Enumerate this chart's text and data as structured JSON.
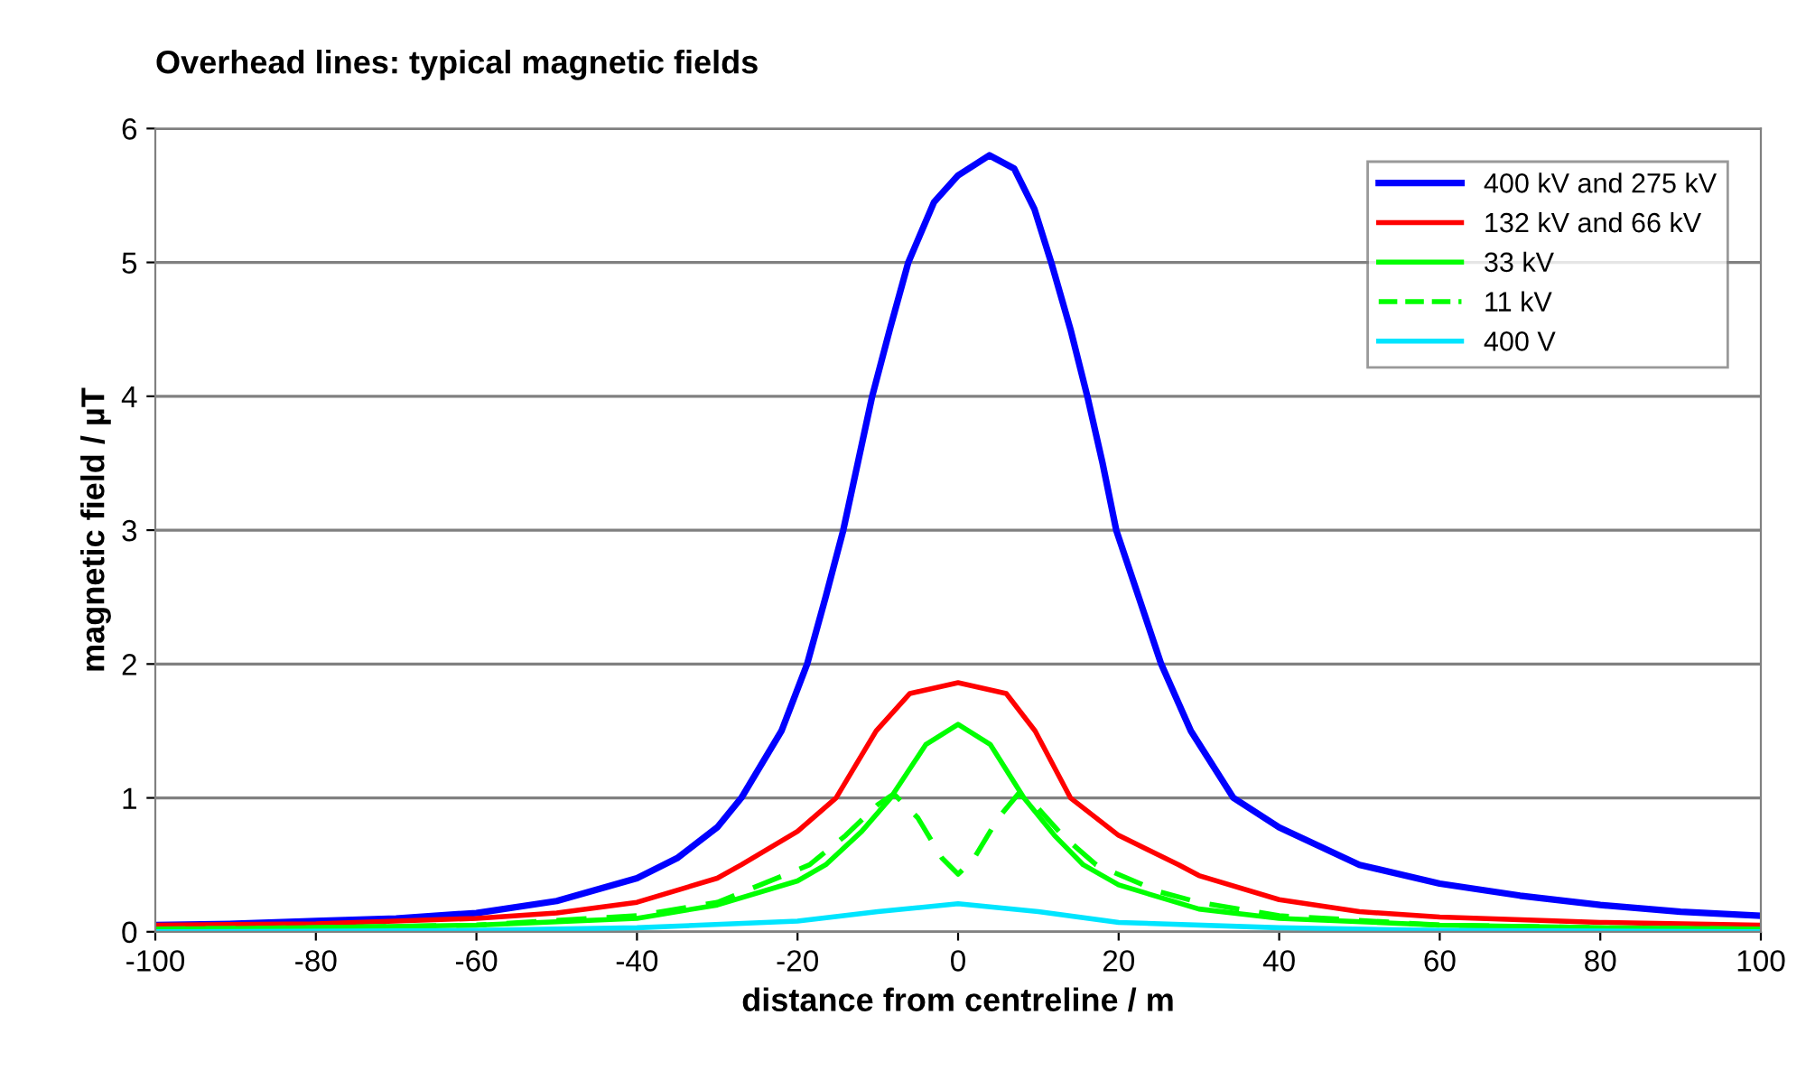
{
  "chart_data": {
    "type": "line",
    "title": "Overhead lines: typical magnetic fields",
    "xlabel": "distance from centreline / m",
    "ylabel": "magnetic field / µT",
    "xlim": [
      -100,
      100
    ],
    "xticks": [
      -100,
      -80,
      -60,
      -40,
      -20,
      0,
      20,
      40,
      60,
      80,
      100
    ],
    "ylim": [
      0,
      6
    ],
    "yticks": [
      0,
      1,
      2,
      3,
      4,
      5,
      6
    ],
    "grid": "y",
    "legend": "top right",
    "marker": "none",
    "series": [
      {
        "name": "400 kV and 275 kV",
        "color": "#0000ff",
        "line_style": "solid",
        "x": [
          -100,
          -90,
          -80,
          -70,
          -60,
          -50,
          -40,
          -35,
          -30,
          -27,
          -22,
          -18.8,
          -16.5,
          -14.3,
          -12.5,
          -10.7,
          -8.5,
          -6.2,
          -3,
          0,
          3.9,
          7,
          9.5,
          11.6,
          14,
          16.1,
          18,
          19.7,
          22.5,
          25.3,
          29,
          34.3,
          40,
          50,
          60,
          70,
          80,
          90,
          100
        ],
        "values": [
          0.05,
          0.06,
          0.08,
          0.1,
          0.14,
          0.23,
          0.4,
          0.55,
          0.78,
          1.0,
          1.5,
          2.0,
          2.5,
          3.0,
          3.5,
          4.0,
          4.5,
          5.0,
          5.45,
          5.65,
          5.8,
          5.7,
          5.4,
          5.0,
          4.5,
          4.0,
          3.5,
          3.0,
          2.5,
          2.0,
          1.5,
          1.0,
          0.78,
          0.5,
          0.36,
          0.27,
          0.2,
          0.15,
          0.12
        ]
      },
      {
        "name": "132 kV and 66 kV",
        "color": "#ff0000",
        "line_style": "solid",
        "x": [
          -100,
          -80,
          -60,
          -50,
          -40,
          -30,
          -27,
          -20,
          -15.2,
          -10.2,
          -6,
          0,
          6,
          9.6,
          14,
          20,
          27.5,
          30,
          40,
          50,
          60,
          80,
          100
        ],
        "values": [
          0.05,
          0.06,
          0.1,
          0.14,
          0.22,
          0.4,
          0.5,
          0.75,
          1.0,
          1.5,
          1.78,
          1.86,
          1.78,
          1.5,
          1.0,
          0.72,
          0.5,
          0.42,
          0.24,
          0.15,
          0.11,
          0.07,
          0.05
        ]
      },
      {
        "name": "33 kV",
        "color": "#00ff00",
        "line_style": "solid",
        "x": [
          -100,
          -80,
          -60,
          -40,
          -30,
          -20,
          -16.5,
          -12,
          -8.4,
          -4,
          0,
          4,
          8.2,
          12,
          15.6,
          20,
          30,
          40,
          60,
          80,
          100
        ],
        "values": [
          0.02,
          0.03,
          0.05,
          0.1,
          0.2,
          0.38,
          0.5,
          0.75,
          1.0,
          1.4,
          1.55,
          1.4,
          1.0,
          0.72,
          0.5,
          0.35,
          0.17,
          0.1,
          0.05,
          0.03,
          0.02
        ]
      },
      {
        "name": "11 kV",
        "color": "#00ff00",
        "line_style": "dashed",
        "x": [
          -100,
          -80,
          -60,
          -40,
          -30,
          -18.5,
          -14,
          -10,
          -8,
          -5,
          -2,
          0,
          2,
          5,
          7.5,
          10,
          13,
          17.2,
          25,
          30,
          40,
          60,
          80,
          100
        ],
        "values": [
          0.02,
          0.03,
          0.05,
          0.12,
          0.22,
          0.5,
          0.72,
          0.95,
          1.03,
          0.85,
          0.55,
          0.43,
          0.55,
          0.85,
          1.03,
          0.92,
          0.72,
          0.5,
          0.3,
          0.22,
          0.12,
          0.05,
          0.03,
          0.02
        ]
      },
      {
        "name": "400 V",
        "color": "#00e5ff",
        "line_style": "solid",
        "x": [
          -100,
          -60,
          -40,
          -20,
          -10,
          0,
          10,
          20,
          40,
          60,
          100
        ],
        "values": [
          0.0,
          0.01,
          0.03,
          0.08,
          0.15,
          0.21,
          0.15,
          0.07,
          0.03,
          0.01,
          0.0
        ]
      }
    ]
  }
}
